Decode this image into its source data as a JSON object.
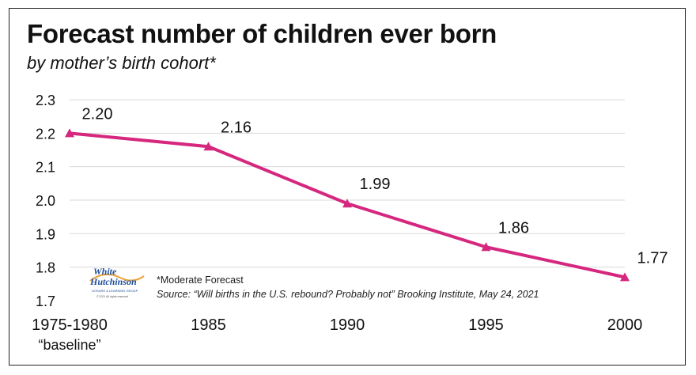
{
  "title": "Forecast number of children ever born",
  "subtitle": "by mother’s birth cohort*",
  "footnote": {
    "note": "*Moderate Forecast",
    "source": "Source: “Will births in the U.S. rebound? Probably not” Brooking Institute, May 24, 2021"
  },
  "logo": {
    "line1": "White",
    "line2": "Hutchinson",
    "tagline": "LEISURE & LEARNING GROUP",
    "copyright": "© 2021 All rights reserved"
  },
  "colors": {
    "series": "#d6277f",
    "grid": "#d9d9d9",
    "text": "#111111"
  },
  "chart_data": {
    "type": "line",
    "categories": [
      "1975-1980",
      "1985",
      "1990",
      "1995",
      "2000"
    ],
    "category_sublabels": [
      "“baseline”",
      "",
      "",
      "",
      ""
    ],
    "series": [
      {
        "values": [
          2.2,
          2.16,
          1.99,
          1.86,
          1.77
        ],
        "labels": [
          "2.20",
          "2.16",
          "1.99",
          "1.86",
          "1.77"
        ]
      }
    ],
    "yticks": [
      "1.7",
      "1.8",
      "1.9",
      "2.0",
      "2.1",
      "2.2",
      "2.3"
    ],
    "ylim": [
      1.7,
      2.3
    ],
    "grid": true,
    "marker": "triangle",
    "xlabel": "",
    "ylabel": ""
  }
}
